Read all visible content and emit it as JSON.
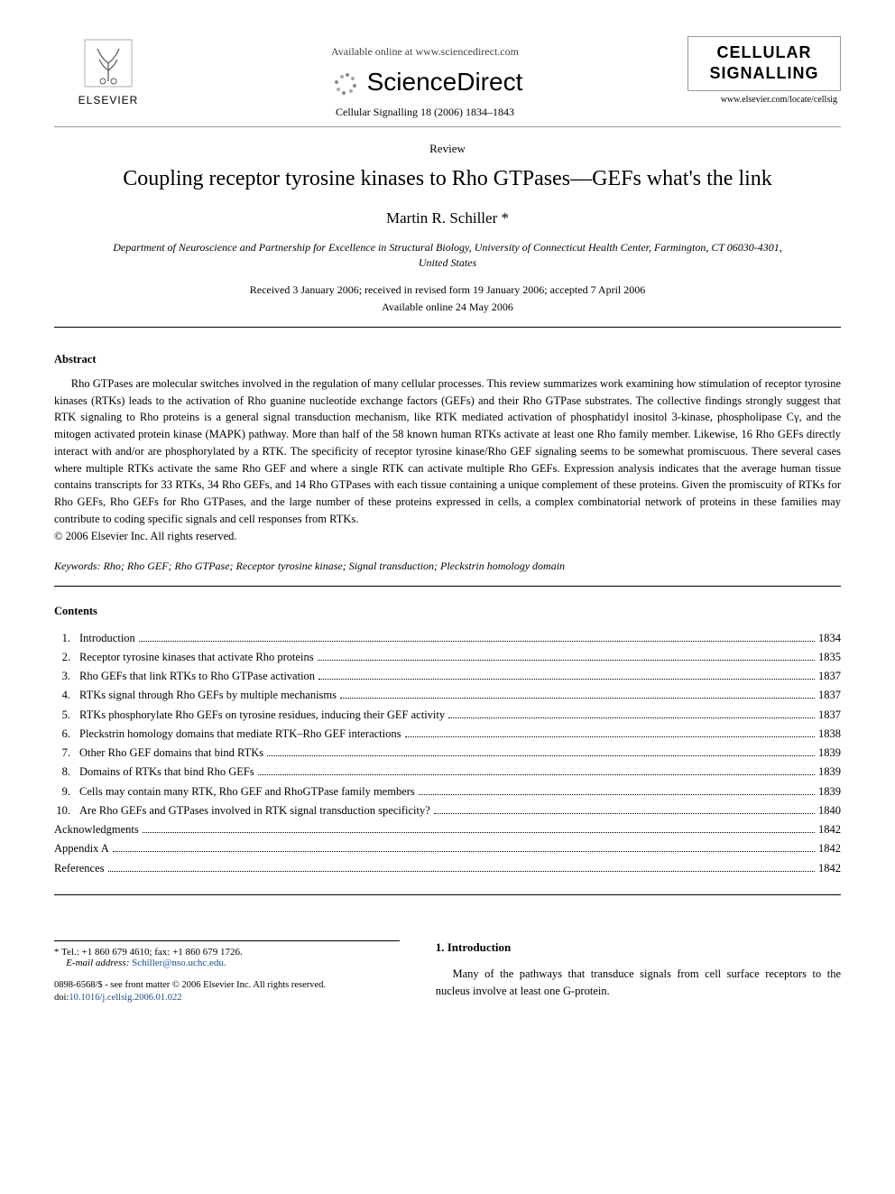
{
  "header": {
    "publisher_name": "ELSEVIER",
    "available_text": "Available online at www.sciencedirect.com",
    "sd_brand": "ScienceDirect",
    "citation": "Cellular Signalling 18 (2006) 1834–1843",
    "journal_name_line1": "CELLULAR",
    "journal_name_line2": "SIGNALLING",
    "journal_url": "www.elsevier.com/locate/cellsig"
  },
  "article": {
    "type": "Review",
    "title": "Coupling receptor tyrosine kinases to Rho GTPases—GEFs what's the link",
    "author": "Martin R. Schiller *",
    "affiliation": "Department of Neuroscience and Partnership for Excellence in Structural Biology, University of Connecticut Health Center, Farmington, CT 06030-4301, United States",
    "received": "Received 3 January 2006; received in revised form 19 January 2006; accepted 7 April 2006",
    "online": "Available online 24 May 2006"
  },
  "abstract": {
    "heading": "Abstract",
    "body": "Rho GTPases are molecular switches involved in the regulation of many cellular processes. This review summarizes work examining how stimulation of receptor tyrosine kinases (RTKs) leads to the activation of Rho guanine nucleotide exchange factors (GEFs) and their Rho GTPase substrates. The collective findings strongly suggest that RTK signaling to Rho proteins is a general signal transduction mechanism, like RTK mediated activation of phosphatidyl inositol 3-kinase, phospholipase Cγ, and the mitogen activated protein kinase (MAPK) pathway. More than half of the 58 known human RTKs activate at least one Rho family member. Likewise, 16 Rho GEFs directly interact with and/or are phosphorylated by a RTK. The specificity of receptor tyrosine kinase/Rho GEF signaling seems to be somewhat promiscuous. There several cases where multiple RTKs activate the same Rho GEF and where a single RTK can activate multiple Rho GEFs. Expression analysis indicates that the average human tissue contains transcripts for 33 RTKs, 34 Rho GEFs, and 14 Rho GTPases with each tissue containing a unique complement of these proteins. Given the promiscuity of RTKs for Rho GEFs, Rho GEFs for Rho GTPases, and the large number of these proteins expressed in cells, a complex combinatorial network of proteins in these families may contribute to coding specific signals and cell responses from RTKs.",
    "copyright": "© 2006 Elsevier Inc. All rights reserved."
  },
  "keywords": {
    "label": "Keywords:",
    "list": "Rho; Rho GEF; Rho GTPase; Receptor tyrosine kinase; Signal transduction; Pleckstrin homology domain"
  },
  "contents": {
    "heading": "Contents",
    "items": [
      {
        "num": "1.",
        "label": "Introduction",
        "page": "1834"
      },
      {
        "num": "2.",
        "label": "Receptor tyrosine kinases that activate Rho proteins",
        "page": "1835"
      },
      {
        "num": "3.",
        "label": "Rho GEFs that link RTKs to Rho GTPase activation",
        "page": "1837"
      },
      {
        "num": "4.",
        "label": "RTKs signal through Rho GEFs by multiple mechanisms",
        "page": "1837"
      },
      {
        "num": "5.",
        "label": "RTKs phosphorylate Rho GEFs on tyrosine residues, inducing their GEF activity",
        "page": "1837"
      },
      {
        "num": "6.",
        "label": "Pleckstrin homology domains that mediate RTK–Rho GEF interactions",
        "page": "1838"
      },
      {
        "num": "7.",
        "label": "Other Rho GEF domains that bind RTKs",
        "page": "1839"
      },
      {
        "num": "8.",
        "label": "Domains of RTKs that bind Rho GEFs",
        "page": "1839"
      },
      {
        "num": "9.",
        "label": "Cells may contain many RTK, Rho GEF and RhoGTPase family members",
        "page": "1839"
      },
      {
        "num": "10.",
        "label": "Are Rho GEFs and GTPases involved in RTK signal transduction specificity?",
        "page": "1840"
      },
      {
        "num": "",
        "label": "Acknowledgments",
        "page": "1842"
      },
      {
        "num": "",
        "label": "Appendix A",
        "page": "1842"
      },
      {
        "num": "",
        "label": "References",
        "page": "1842"
      }
    ]
  },
  "footnote": {
    "tel": "* Tel.: +1 860 679 4610; fax: +1 860 679 1726.",
    "email_label": "E-mail address:",
    "email": "Schiller@nso.uchc.edu."
  },
  "frontmatter": {
    "line1": "0898-6568/$ - see front matter © 2006 Elsevier Inc. All rights reserved.",
    "doi_label": "doi:",
    "doi": "10.1016/j.cellsig.2006.01.022"
  },
  "intro": {
    "heading": "1. Introduction",
    "text": "Many of the pathways that transduce signals from cell surface receptors to the nucleus involve at least one G-protein."
  },
  "colors": {
    "text": "#000000",
    "link": "#1a4b8c",
    "rule": "#999999",
    "background": "#ffffff"
  },
  "typography": {
    "body_family": "Georgia, Times New Roman, serif",
    "title_size_pt": 24,
    "author_size_pt": 17,
    "body_size_pt": 12.5,
    "small_size_pt": 11
  }
}
